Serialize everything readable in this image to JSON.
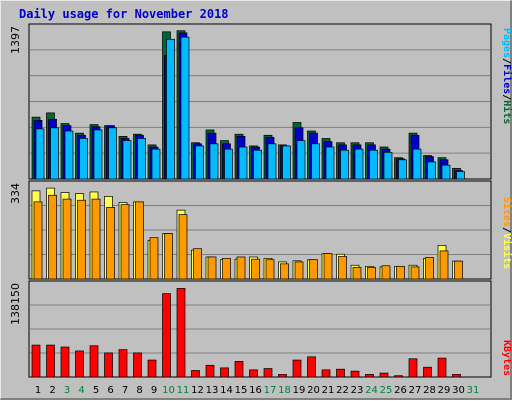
{
  "title": "Daily usage for November 2018",
  "colors": {
    "hits": "#006633",
    "files": "#0000cc",
    "pages": "#00bbff",
    "visits": "#ffff55",
    "sites": "#ff9900",
    "kbytes": "#ff0000",
    "weekday_tick": "#000000",
    "weekend_tick": "#008040"
  },
  "chart_data": [
    {
      "type": "bar",
      "name": "hits-files-pages",
      "max_label": "1397",
      "legend": [
        {
          "key": "pages",
          "label": "Pages",
          "color": "#00bbff"
        },
        {
          "key": "sep1",
          "label": "/",
          "color": "#000000"
        },
        {
          "key": "files",
          "label": "Files",
          "color": "#0000cc"
        },
        {
          "key": "sep2",
          "label": "/",
          "color": "#000000"
        },
        {
          "key": "hits",
          "label": "Hits",
          "color": "#006633"
        }
      ],
      "ylim": [
        0,
        1397
      ],
      "series": [
        {
          "key": "hits",
          "values": [
            580,
            620,
            520,
            430,
            510,
            500,
            400,
            420,
            320,
            1380,
            1390,
            340,
            460,
            360,
            420,
            310,
            410,
            320,
            530,
            450,
            380,
            340,
            340,
            340,
            300,
            200,
            430,
            220,
            200,
            100
          ]
        },
        {
          "key": "files",
          "values": [
            550,
            560,
            500,
            410,
            490,
            500,
            380,
            410,
            300,
            1160,
            1370,
            330,
            430,
            330,
            400,
            300,
            390,
            310,
            480,
            430,
            350,
            320,
            320,
            320,
            280,
            190,
            410,
            210,
            180,
            80
          ]
        },
        {
          "key": "pages",
          "values": [
            470,
            480,
            450,
            380,
            460,
            480,
            360,
            380,
            280,
            1310,
            1330,
            310,
            330,
            280,
            300,
            270,
            330,
            310,
            360,
            330,
            300,
            270,
            280,
            270,
            250,
            180,
            280,
            160,
            130,
            70
          ]
        }
      ]
    },
    {
      "type": "bar",
      "name": "visits-sites",
      "max_label": "334",
      "legend": [
        {
          "key": "sites",
          "label": "Sites",
          "color": "#ff9900"
        },
        {
          "key": "sep1",
          "label": "/",
          "color": "#000000"
        },
        {
          "key": "visits",
          "label": "Visits",
          "color": "#ffff55"
        }
      ],
      "ylim": [
        0,
        334
      ],
      "series": [
        {
          "key": "visits",
          "values": [
            320,
            330,
            314,
            310,
            316,
            300,
            278,
            280,
            140,
            165,
            250,
            105,
            80,
            70,
            72,
            80,
            75,
            62,
            66,
            70,
            92,
            90,
            50,
            46,
            44,
            46,
            50,
            75,
            122,
            65
          ]
        },
        {
          "key": "sites",
          "values": [
            280,
            304,
            290,
            286,
            290,
            260,
            270,
            280,
            150,
            165,
            234,
            110,
            80,
            75,
            80,
            72,
            70,
            55,
            62,
            70,
            92,
            82,
            42,
            42,
            48,
            46,
            44,
            78,
            102,
            65
          ]
        }
      ]
    },
    {
      "type": "bar",
      "name": "kbytes",
      "max_label": "138150",
      "legend": [
        {
          "key": "kbytes",
          "label": "KBytes",
          "color": "#ff0000"
        }
      ],
      "ylim": [
        0,
        138150
      ],
      "series": [
        {
          "key": "kbytes",
          "values": [
            49000,
            49000,
            46000,
            40000,
            48000,
            37000,
            42000,
            37000,
            26000,
            128000,
            136000,
            10000,
            18000,
            14000,
            24000,
            11000,
            13000,
            4000,
            26000,
            31000,
            11000,
            12000,
            9000,
            4000,
            6000,
            2000,
            28000,
            15000,
            29000,
            4000
          ]
        }
      ]
    }
  ],
  "x_axis": {
    "days": [
      "1",
      "2",
      "3",
      "4",
      "5",
      "6",
      "7",
      "8",
      "9",
      "10",
      "11",
      "12",
      "13",
      "14",
      "15",
      "16",
      "17",
      "18",
      "19",
      "20",
      "21",
      "22",
      "23",
      "24",
      "25",
      "26",
      "27",
      "28",
      "29",
      "30",
      "31"
    ],
    "weekend": [
      false,
      false,
      true,
      true,
      false,
      false,
      false,
      false,
      false,
      true,
      true,
      false,
      false,
      false,
      false,
      false,
      true,
      true,
      false,
      false,
      false,
      false,
      false,
      true,
      true,
      false,
      false,
      false,
      false,
      false,
      true
    ]
  }
}
